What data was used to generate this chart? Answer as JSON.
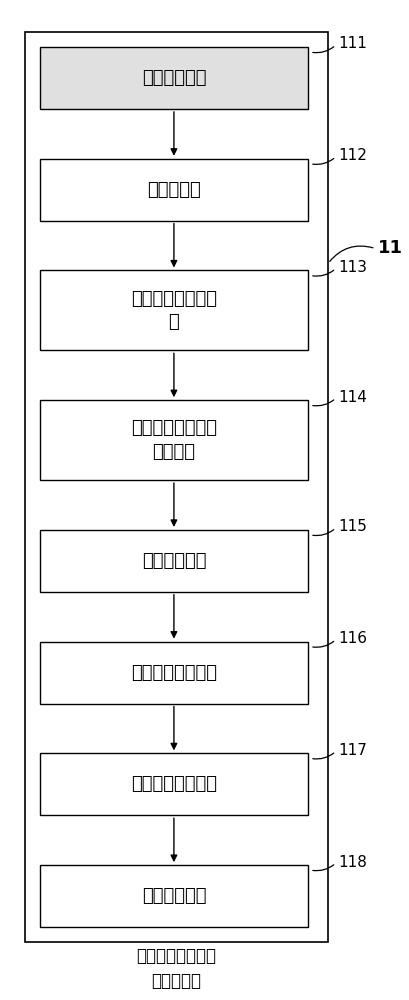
{
  "title": "液化石油气发动机\n仿真子系统",
  "box_fill_white": "#ffffff",
  "box_fill_gray": "#e0e0e0",
  "box_border_color": "#000000",
  "arrow_color": "#000000",
  "background_color": "#ffffff",
  "blocks": [
    {
      "label": "工况输入模块",
      "tag": "111",
      "multiline": false,
      "gray": true
    },
    {
      "label": "进气道模块",
      "tag": "112",
      "multiline": false,
      "gray": false
    },
    {
      "label": "空气进气量计算模\n块",
      "tag": "113",
      "multiline": true,
      "gray": false
    },
    {
      "label": "液化石油气供给量\n计算模块",
      "tag": "114",
      "multiline": true,
      "gray": false
    },
    {
      "label": "缸内燃烧模块",
      "tag": "115",
      "multiline": false,
      "gray": false
    },
    {
      "label": "燃气消耗计算模块",
      "tag": "116",
      "multiline": false,
      "gray": false
    },
    {
      "label": "动力输出计算模块",
      "tag": "117",
      "multiline": false,
      "gray": false
    },
    {
      "label": "尾气排放模块",
      "tag": "118",
      "multiline": false,
      "gray": false
    }
  ],
  "outer_tag": "11",
  "font_size_block": 13,
  "font_size_tag": 11,
  "font_size_title": 12
}
